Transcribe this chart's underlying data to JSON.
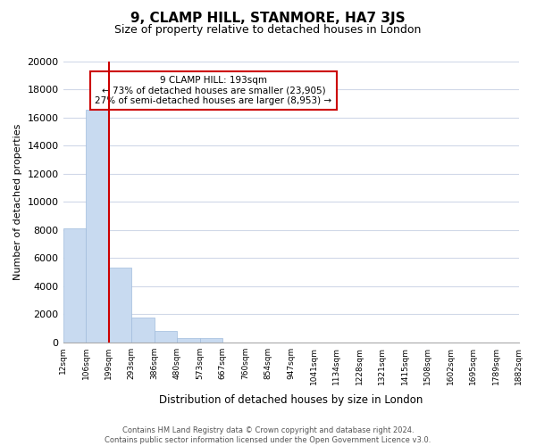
{
  "title": "9, CLAMP HILL, STANMORE, HA7 3JS",
  "subtitle": "Size of property relative to detached houses in London",
  "xlabel": "Distribution of detached houses by size in London",
  "ylabel": "Number of detached properties",
  "bar_values": [
    8100,
    16600,
    5300,
    1750,
    800,
    300,
    300,
    0,
    0,
    0,
    0,
    0,
    0,
    0,
    0,
    0,
    0,
    0,
    0
  ],
  "bin_labels": [
    "12sqm",
    "106sqm",
    "199sqm",
    "293sqm",
    "386sqm",
    "480sqm",
    "573sqm",
    "667sqm",
    "760sqm",
    "854sqm",
    "947sqm",
    "1041sqm",
    "1134sqm",
    "1228sqm",
    "1321sqm",
    "1415sqm",
    "1508sqm",
    "1602sqm",
    "1695sqm",
    "1789sqm",
    "1882sqm"
  ],
  "bar_color": "#c8daf0",
  "bar_edge_color": "#a0bcdc",
  "marker_color": "#cc0000",
  "ylim": [
    0,
    20000
  ],
  "yticks": [
    0,
    2000,
    4000,
    6000,
    8000,
    10000,
    12000,
    14000,
    16000,
    18000,
    20000
  ],
  "annotation_title": "9 CLAMP HILL: 193sqm",
  "annotation_line1": "← 73% of detached houses are smaller (23,905)",
  "annotation_line2": "27% of semi-detached houses are larger (8,953) →",
  "annotation_box_color": "#ffffff",
  "annotation_box_edge": "#cc0000",
  "footer_line1": "Contains HM Land Registry data © Crown copyright and database right 2024.",
  "footer_line2": "Contains public sector information licensed under the Open Government Licence v3.0.",
  "background_color": "#ffffff",
  "grid_color": "#d0d8e8"
}
